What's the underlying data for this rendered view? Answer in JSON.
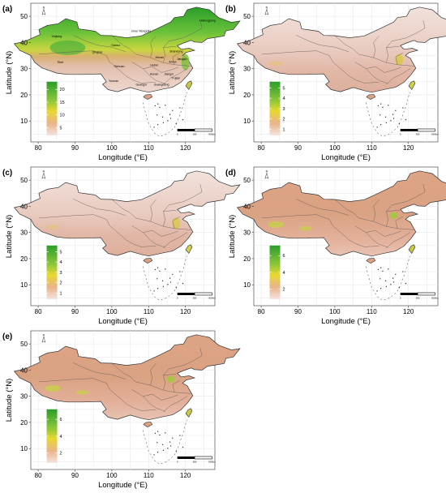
{
  "axis": {
    "xlabel": "Longitude (°E)",
    "ylabel": "Latitude (°N)",
    "xticks": [
      "80",
      "90",
      "100",
      "110",
      "120"
    ],
    "yticks": [
      "10",
      "20",
      "30",
      "40",
      "50"
    ]
  },
  "scalebar": {
    "labels": [
      "0",
      "300",
      "600km"
    ]
  },
  "north_arrow": {
    "label": "N"
  },
  "panels": [
    {
      "label": "(a)",
      "legend_ticks": [
        "20",
        "15",
        "10",
        "5"
      ],
      "map_style": "green-north",
      "region_labels": [
        "Xinjiang",
        "Inner Mongolia",
        "Heilongjiang",
        "Tibet",
        "Qinghai",
        "Gansu",
        "Sichuan",
        "Hubei",
        "Henan",
        "Shandong",
        "Hunan",
        "Guangxi",
        "Guangdong",
        "Yunnan",
        "Jiangxi",
        "Fujian",
        "Anhui",
        "Jiangsu"
      ]
    },
    {
      "label": "(b)",
      "legend_ticks": [
        "5",
        "4",
        "3",
        "2",
        "1"
      ],
      "map_style": "pale",
      "region_labels": []
    },
    {
      "label": "(c)",
      "legend_ticks": [
        "5",
        "4",
        "3",
        "2",
        "1"
      ],
      "map_style": "pale",
      "region_labels": []
    },
    {
      "label": "(d)",
      "legend_ticks": [
        "6",
        "4",
        "2"
      ],
      "map_style": "tan",
      "region_labels": []
    },
    {
      "label": "(e)",
      "legend_ticks": [
        "6",
        "4",
        "2"
      ],
      "map_style": "tan",
      "region_labels": []
    }
  ],
  "colors": {
    "green": "#2a9e2a",
    "yellow": "#e8d830",
    "tan": "#dda486",
    "pale": "#eed8d0",
    "grid": "#e6e6e6"
  }
}
